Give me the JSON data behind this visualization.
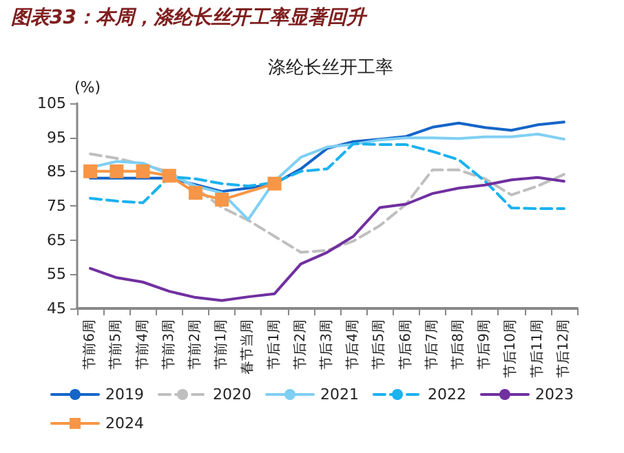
{
  "chart_data": {
    "type": "line",
    "title": "涤纶长丝开工率",
    "ylabel": "(%)",
    "annotations": [
      "图表33：本周，涤纶长丝开工率显著回升"
    ],
    "categories": [
      "节前6周",
      "节前5周",
      "节前4周",
      "节前3周",
      "节前2周",
      "节前1周",
      "春节当周",
      "节后1周",
      "节后2周",
      "节后3周",
      "节后4周",
      "节后5周",
      "节后6周",
      "节后7周",
      "节后8周",
      "节后9周",
      "节后10周",
      "节后11周",
      "节后12周"
    ],
    "ylim": [
      45,
      105
    ],
    "yticks": [
      45,
      55,
      65,
      75,
      85,
      95,
      105
    ],
    "grid": false,
    "legend": "bottom",
    "marker": "none",
    "series": [
      {
        "name": "2019",
        "color": "#1565c8",
        "line_style": "solid",
        "values": [
          83.1,
          83.1,
          83.1,
          83.1,
          81.2,
          79.2,
          80.2,
          81.5,
          85.8,
          91.8,
          93.8,
          94.5,
          95.3,
          98,
          99.2,
          97.9,
          97.1,
          98.7,
          99.5
        ]
      },
      {
        "name": "2020",
        "color": "#bfbfbf",
        "line_style": "dashed",
        "values": [
          90.2,
          88.9,
          87.1,
          84.9,
          80.2,
          74.5,
          70.8,
          66.1,
          61.4,
          62,
          64.7,
          69.2,
          75.5,
          85.5,
          85.5,
          82.9,
          78.2,
          80.8,
          84.2
        ]
      },
      {
        "name": "2021",
        "color": "#7fcff3",
        "line_style": "solid",
        "values": [
          86.2,
          88,
          87.5,
          84.2,
          80.8,
          78.8,
          71,
          82.2,
          89.2,
          92.2,
          93,
          94.3,
          94.9,
          94.9,
          94.7,
          95.2,
          95.2,
          96,
          94.5
        ]
      },
      {
        "name": "2022",
        "color": "#1ab2ef",
        "line_style": "dashed",
        "values": [
          77.2,
          76.4,
          75.9,
          83.5,
          82.9,
          81.5,
          80.8,
          81.8,
          85.1,
          85.8,
          93.2,
          92.9,
          92.9,
          90.9,
          88.5,
          82.2,
          74.4,
          74.2,
          74.2
        ]
      },
      {
        "name": "2023",
        "color": "#7030a0",
        "line_style": "solid",
        "values": [
          56.7,
          54,
          52.7,
          50,
          48.2,
          47.3,
          48.4,
          49.3,
          58,
          61.4,
          66.1,
          74.5,
          75.5,
          78.6,
          80.2,
          81.1,
          82.6,
          83.3,
          82.2
        ]
      },
      {
        "name": "2024",
        "color": "#f79646",
        "line_style": "solid",
        "marker": "square",
        "values": [
          85.1,
          85.1,
          85.1,
          83.8,
          78.8,
          76.8,
          null,
          81.5,
          null,
          null,
          null,
          null,
          null,
          null,
          null,
          null,
          null,
          null,
          null
        ]
      }
    ]
  }
}
